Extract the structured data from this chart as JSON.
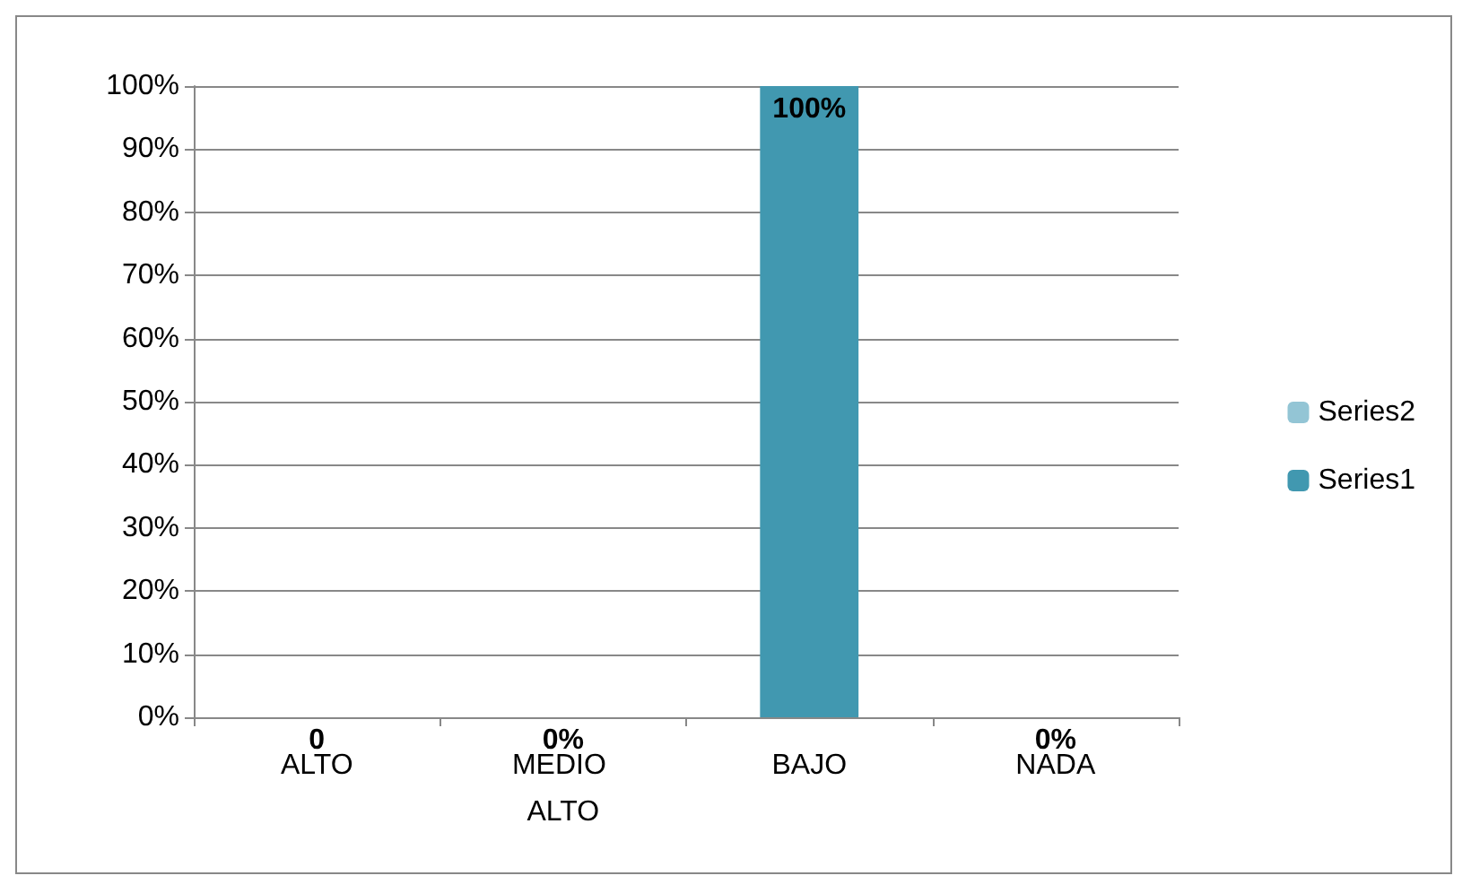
{
  "chart_data": {
    "type": "bar",
    "stacked": true,
    "categories": [
      "ALTO",
      "MEDIO ALTO",
      "BAJO",
      "NADA"
    ],
    "series": [
      {
        "name": "Series1",
        "color": "#4198b0",
        "values": [
          0,
          0,
          100,
          0
        ],
        "value_labels": [
          "0",
          "0%",
          "100%",
          "0%"
        ]
      },
      {
        "name": "Series2",
        "color": "#93c5d5",
        "values": [
          null,
          null,
          null,
          null
        ]
      }
    ],
    "ylim": [
      0,
      100
    ],
    "yticks": [
      {
        "value": 0,
        "label": "0%"
      },
      {
        "value": 10,
        "label": "10%"
      },
      {
        "value": 20,
        "label": "20%"
      },
      {
        "value": 30,
        "label": "30%"
      },
      {
        "value": 40,
        "label": "40%"
      },
      {
        "value": 50,
        "label": "50%"
      },
      {
        "value": 60,
        "label": "60%"
      },
      {
        "value": 70,
        "label": "70%"
      },
      {
        "value": 80,
        "label": "80%"
      },
      {
        "value": 90,
        "label": "90%"
      },
      {
        "value": 100,
        "label": "100%"
      }
    ],
    "grid": "y",
    "legend": "right"
  }
}
